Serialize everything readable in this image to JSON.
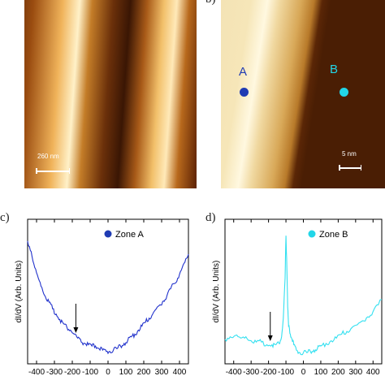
{
  "panels": {
    "a": {
      "letter": "",
      "scale_label": "260 nm"
    },
    "b": {
      "letter": "b)",
      "zones": [
        {
          "label": "A",
          "color": "#1f3bb3"
        },
        {
          "label": "B",
          "color": "#22d6e8"
        }
      ],
      "scale_label": "5 nm"
    },
    "c": {
      "letter": "c)"
    },
    "d": {
      "letter": "d)"
    }
  },
  "chart_data": [
    {
      "type": "line",
      "ylabel": "dI/dV (Arb. Units)",
      "xlabel": "",
      "xlim": [
        -450,
        450
      ],
      "x_ticks": [
        -400,
        -300,
        -200,
        -100,
        0,
        100,
        200,
        300,
        400
      ],
      "x_tick_labels": [
        "-400",
        "-300",
        "-200",
        "-100",
        "0",
        "100",
        "200",
        "300",
        "400"
      ],
      "legend": {
        "label": "Zone A",
        "color": "#1f3bb3",
        "placement": "top-right"
      },
      "arrow_at_x": -180,
      "series": [
        {
          "name": "Zone A",
          "color": "#2233cc",
          "x": [
            -450,
            -430,
            -410,
            -390,
            -370,
            -350,
            -330,
            -310,
            -290,
            -270,
            -250,
            -230,
            -210,
            -190,
            -170,
            -150,
            -130,
            -110,
            -90,
            -70,
            -50,
            -30,
            -10,
            10,
            30,
            50,
            70,
            90,
            110,
            130,
            150,
            170,
            190,
            210,
            230,
            250,
            270,
            290,
            310,
            330,
            350,
            370,
            390,
            410,
            430,
            450
          ],
          "y": [
            0.88,
            0.8,
            0.68,
            0.6,
            0.53,
            0.46,
            0.42,
            0.37,
            0.33,
            0.29,
            0.26,
            0.23,
            0.21,
            0.18,
            0.15,
            0.12,
            0.11,
            0.1,
            0.09,
            0.09,
            0.07,
            0.06,
            0.05,
            0.05,
            0.06,
            0.07,
            0.09,
            0.11,
            0.13,
            0.16,
            0.18,
            0.21,
            0.24,
            0.27,
            0.3,
            0.33,
            0.37,
            0.4,
            0.43,
            0.47,
            0.52,
            0.56,
            0.6,
            0.66,
            0.72,
            0.78
          ]
        }
      ]
    },
    {
      "type": "line",
      "ylabel": "dI/dV (Arb. Units)",
      "xlabel": "",
      "xlim": [
        -450,
        450
      ],
      "x_ticks": [
        -400,
        -300,
        -200,
        -100,
        0,
        100,
        200,
        300,
        400
      ],
      "x_tick_labels": [
        "-400",
        "-300",
        "-200",
        "-100",
        "0",
        "100",
        "200",
        "300",
        "400"
      ],
      "legend": {
        "label": "Zone B",
        "color": "#22d6e8",
        "placement": "top-right"
      },
      "arrow_at_x": -190,
      "series": [
        {
          "name": "Zone B",
          "color": "#33e0f0",
          "x": [
            -450,
            -420,
            -390,
            -360,
            -330,
            -300,
            -270,
            -240,
            -210,
            -180,
            -160,
            -140,
            -125,
            -115,
            -105,
            -100,
            -95,
            -90,
            -85,
            -75,
            -65,
            -55,
            -40,
            -20,
            0,
            20,
            40,
            60,
            80,
            100,
            130,
            160,
            190,
            220,
            250,
            280,
            310,
            340,
            370,
            400,
            430,
            450
          ],
          "y": [
            0.14,
            0.16,
            0.17,
            0.15,
            0.16,
            0.13,
            0.12,
            0.12,
            0.1,
            0.1,
            0.1,
            0.11,
            0.16,
            0.3,
            0.6,
            0.92,
            0.7,
            0.38,
            0.24,
            0.18,
            0.14,
            0.1,
            0.06,
            0.04,
            0.04,
            0.04,
            0.05,
            0.06,
            0.07,
            0.09,
            0.11,
            0.13,
            0.15,
            0.18,
            0.2,
            0.23,
            0.25,
            0.28,
            0.31,
            0.35,
            0.4,
            0.44
          ]
        }
      ]
    }
  ]
}
